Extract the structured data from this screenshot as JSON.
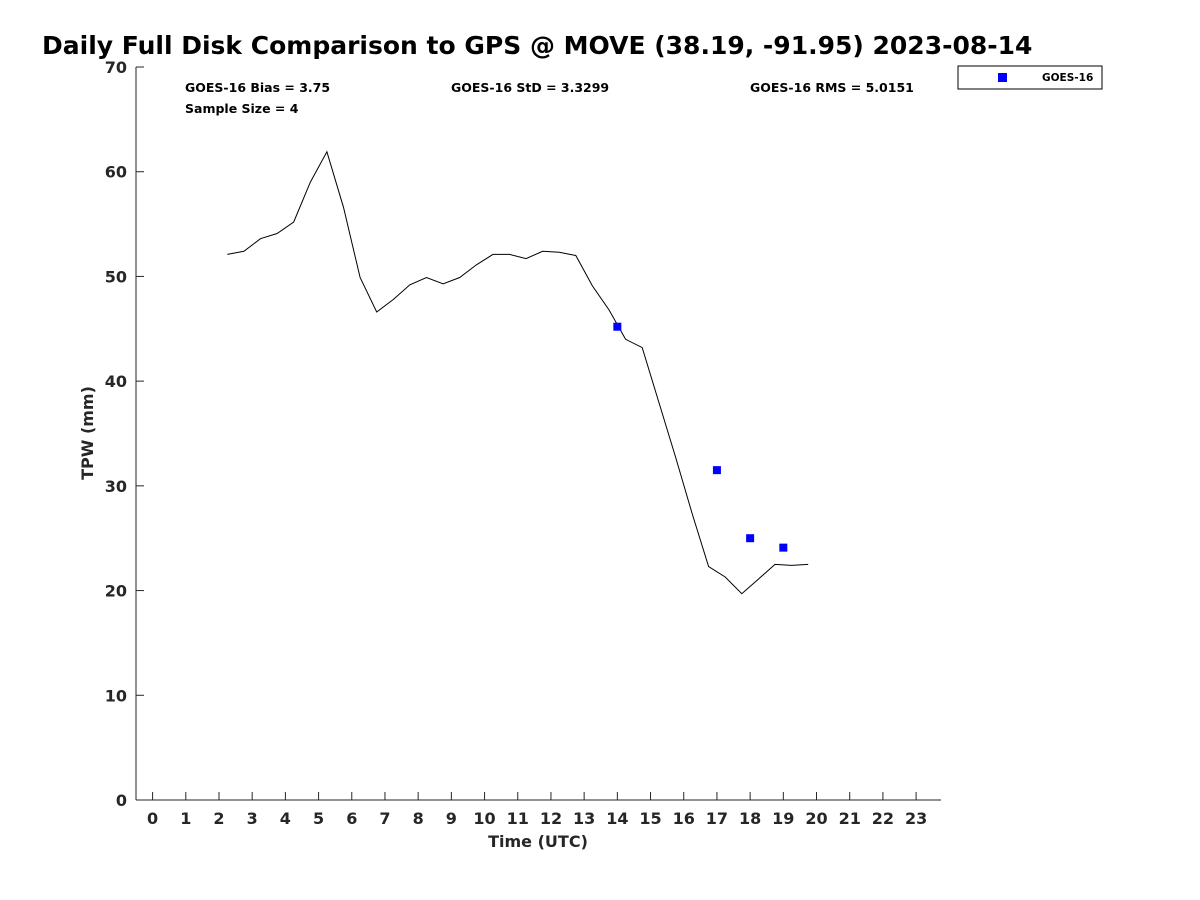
{
  "chart_data": {
    "type": "line",
    "title": "Daily Full Disk Comparison to GPS @ MOVE (38.19, -91.95) 2023-08-14",
    "xlabel": "Time (UTC)",
    "ylabel": "TPW (mm)",
    "xlim": [
      -0.5,
      23.75
    ],
    "ylim": [
      0,
      70
    ],
    "x_ticks": [
      0,
      1,
      2,
      3,
      4,
      5,
      6,
      7,
      8,
      9,
      10,
      11,
      12,
      13,
      14,
      15,
      16,
      17,
      18,
      19,
      20,
      21,
      22,
      23
    ],
    "y_ticks": [
      0,
      10,
      20,
      30,
      40,
      50,
      60,
      70
    ],
    "grid": false,
    "legend_position": "top-right (outside plot)",
    "stats": {
      "bias": "GOES-16 Bias = 3.75",
      "std": "GOES-16 StD = 3.3299",
      "rms": "GOES-16 RMS = 5.0151",
      "sample_size": "Sample Size = 4"
    },
    "series": [
      {
        "style": "line",
        "color": "#000000",
        "x": [
          2.25,
          2.75,
          3.25,
          3.75,
          4.25,
          4.75,
          5.25,
          5.75,
          6.25,
          6.75,
          7.25,
          7.75,
          8.25,
          8.75,
          9.25,
          9.75,
          10.25,
          10.75,
          11.25,
          11.75,
          12.25,
          12.75,
          13.25,
          13.75,
          14.25,
          14.75,
          15.25,
          15.75,
          16.25,
          16.75,
          17.25,
          17.75,
          18.25,
          18.75,
          19.25,
          19.75
        ],
        "y": [
          52.1,
          52.4,
          53.6,
          54.1,
          55.2,
          59.0,
          61.9,
          56.6,
          49.9,
          46.6,
          47.8,
          49.2,
          49.9,
          49.3,
          49.9,
          51.1,
          52.1,
          52.1,
          51.7,
          52.4,
          52.3,
          52.0,
          49.1,
          46.8,
          44.0,
          43.2,
          38.0,
          32.8,
          27.4,
          22.3,
          21.3,
          19.7,
          21.1,
          22.5,
          22.4,
          22.5
        ]
      },
      {
        "name": "GOES-16",
        "style": "marker",
        "marker": "square",
        "color": "#0000ff",
        "x": [
          14,
          17,
          18,
          19
        ],
        "y": [
          45.2,
          31.5,
          25.0,
          24.1
        ]
      }
    ]
  }
}
